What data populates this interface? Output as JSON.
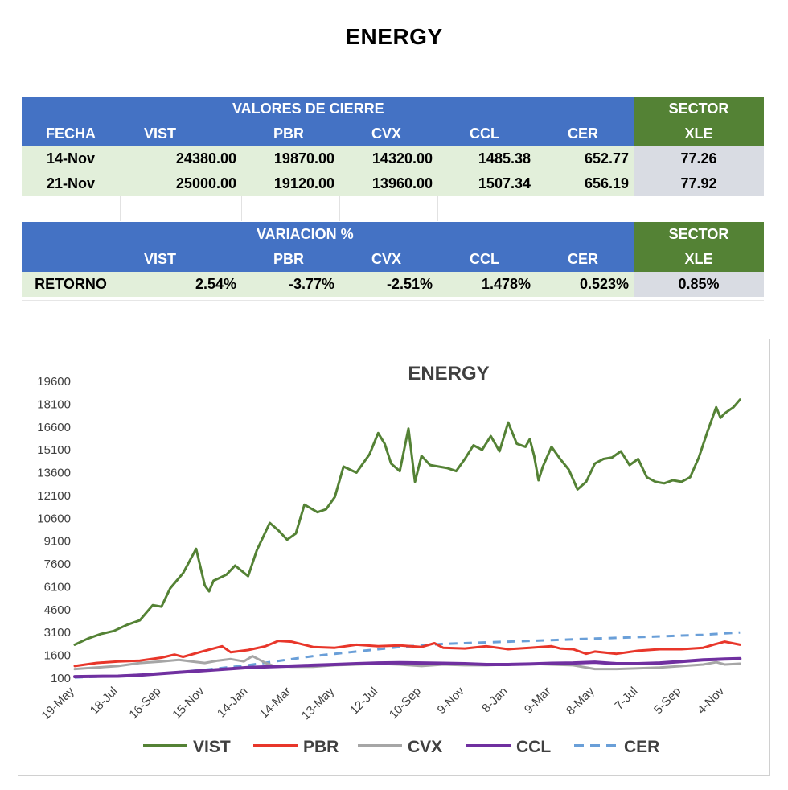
{
  "page_title": "ENERGY",
  "table_values": {
    "header_main": "VALORES DE CIERRE",
    "header_sector": "SECTOR",
    "columns": [
      "FECHA",
      "VIST",
      "PBR",
      "CVX",
      "CCL",
      "CER"
    ],
    "sector_col": "XLE",
    "rows": [
      {
        "fecha": "14-Nov",
        "vist": "24380.00",
        "pbr": "19870.00",
        "cvx": "14320.00",
        "ccl": "1485.38",
        "cer": "652.77",
        "xle": "77.26"
      },
      {
        "fecha": "21-Nov",
        "vist": "25000.00",
        "pbr": "19120.00",
        "cvx": "13960.00",
        "ccl": "1507.34",
        "cer": "656.19",
        "xle": "77.92"
      }
    ]
  },
  "table_variation": {
    "header_main": "VARIACION %",
    "header_sector": "SECTOR",
    "columns": [
      "",
      "VIST",
      "PBR",
      "CVX",
      "CCL",
      "CER"
    ],
    "sector_col": "XLE",
    "row": {
      "label": "RETORNO",
      "vist": "2.54%",
      "pbr": "-3.77%",
      "cvx": "-2.51%",
      "ccl": "1.478%",
      "cer": "0.523%",
      "xle": "0.85%"
    }
  },
  "chart_data": {
    "type": "line",
    "title": "ENERGY",
    "xlabel": "",
    "ylabel": "",
    "ylim": [
      100,
      19600
    ],
    "y_ticks": [
      "19600",
      "18100",
      "16600",
      "15100",
      "13600",
      "12100",
      "10600",
      "9100",
      "7600",
      "6100",
      "4600",
      "3100",
      "1600",
      "100"
    ],
    "y_tick_values": [
      19600,
      18100,
      16600,
      15100,
      13600,
      12100,
      10600,
      9100,
      7600,
      6100,
      4600,
      3100,
      1600,
      100
    ],
    "x_ticks": [
      "19-May",
      "18-Jul",
      "16-Sep",
      "15-Nov",
      "14-Jan",
      "14-Mar",
      "13-May",
      "12-Jul",
      "10-Sep",
      "9-Nov",
      "8-Jan",
      "9-Mar",
      "8-May",
      "7-Jul",
      "5-Sep",
      "4-Nov"
    ],
    "x_range": [
      0,
      15.4
    ],
    "legend_position": "bottom",
    "series": [
      {
        "name": "VIST",
        "color": "#548235",
        "dash": "none",
        "x": [
          0,
          0.3,
          0.6,
          0.9,
          1.2,
          1.5,
          1.8,
          2.0,
          2.2,
          2.5,
          2.8,
          3.0,
          3.1,
          3.2,
          3.35,
          3.5,
          3.7,
          4.0,
          4.2,
          4.5,
          4.7,
          4.9,
          5.1,
          5.3,
          5.6,
          5.8,
          6.0,
          6.2,
          6.5,
          6.8,
          7.0,
          7.15,
          7.3,
          7.5,
          7.7,
          7.85,
          8.0,
          8.2,
          8.4,
          8.6,
          8.8,
          9.0,
          9.2,
          9.4,
          9.6,
          9.8,
          10.0,
          10.2,
          10.4,
          10.5,
          10.6,
          10.7,
          10.8,
          11.0,
          11.2,
          11.4,
          11.6,
          11.8,
          12.0,
          12.2,
          12.4,
          12.6,
          12.8,
          13.0,
          13.2,
          13.4,
          13.6,
          13.8,
          14.0,
          14.2,
          14.4,
          14.6,
          14.8,
          14.9,
          15.0,
          15.2,
          15.35
        ],
        "y": [
          2300,
          2700,
          3000,
          3200,
          3600,
          3900,
          4900,
          4800,
          6000,
          7000,
          8600,
          6200,
          5800,
          6500,
          6700,
          6900,
          7500,
          6800,
          8500,
          10300,
          9800,
          9200,
          9600,
          11500,
          11000,
          11200,
          12000,
          14000,
          13600,
          14800,
          16200,
          15500,
          14200,
          13700,
          16500,
          13000,
          14700,
          14100,
          14000,
          13900,
          13700,
          14500,
          15400,
          15100,
          16000,
          15000,
          16900,
          15500,
          15300,
          15800,
          14700,
          13100,
          14000,
          15300,
          14500,
          13800,
          12500,
          13000,
          14200,
          14500,
          14600,
          15000,
          14100,
          14500,
          13300,
          13000,
          12900,
          13100,
          13000,
          13300,
          14600,
          16300,
          17900,
          17200,
          17500,
          17900,
          18400
        ]
      },
      {
        "name": "PBR",
        "color": "#e8362a",
        "dash": "none",
        "x": [
          0,
          0.5,
          1.0,
          1.5,
          2.0,
          2.3,
          2.5,
          3.0,
          3.4,
          3.6,
          4.0,
          4.4,
          4.7,
          5.0,
          5.5,
          6.0,
          6.5,
          7.0,
          7.5,
          8.0,
          8.3,
          8.5,
          9.0,
          9.5,
          10.0,
          10.5,
          11.0,
          11.2,
          11.5,
          11.8,
          12.0,
          12.5,
          13.0,
          13.5,
          14.0,
          14.5,
          14.8,
          15.0,
          15.35
        ],
        "y": [
          900,
          1100,
          1200,
          1250,
          1450,
          1650,
          1500,
          1900,
          2200,
          1800,
          1950,
          2200,
          2550,
          2500,
          2150,
          2100,
          2300,
          2200,
          2250,
          2150,
          2400,
          2100,
          2050,
          2200,
          2000,
          2100,
          2200,
          2050,
          2000,
          1700,
          1850,
          1700,
          1900,
          2000,
          2000,
          2100,
          2350,
          2500,
          2300
        ]
      },
      {
        "name": "CVX",
        "color": "#a6a6a6",
        "dash": "none",
        "x": [
          0,
          0.5,
          1.0,
          1.5,
          2.0,
          2.4,
          2.7,
          3.0,
          3.3,
          3.6,
          3.9,
          4.1,
          4.4,
          4.6,
          5.0,
          5.5,
          6.0,
          6.5,
          7.0,
          7.5,
          8.0,
          8.5,
          9.0,
          9.5,
          10.0,
          10.5,
          11.0,
          11.5,
          12.0,
          12.5,
          13.0,
          13.5,
          14.0,
          14.5,
          14.8,
          15.0,
          15.35
        ],
        "y": [
          700,
          800,
          900,
          1100,
          1200,
          1300,
          1200,
          1100,
          1250,
          1350,
          1200,
          1550,
          1100,
          900,
          850,
          850,
          950,
          1000,
          1050,
          1000,
          900,
          1000,
          950,
          950,
          1000,
          1050,
          1000,
          950,
          700,
          700,
          750,
          800,
          900,
          1000,
          1150,
          1000,
          1050
        ]
      },
      {
        "name": "CCL",
        "color": "#7030a0",
        "dash": "none",
        "x": [
          0,
          0.5,
          1.0,
          1.5,
          2.0,
          2.5,
          3.0,
          3.5,
          4.0,
          4.5,
          5.0,
          5.5,
          6.0,
          6.5,
          7.0,
          7.5,
          8.0,
          8.5,
          9.0,
          9.5,
          10.0,
          10.5,
          11.0,
          11.5,
          12.0,
          12.5,
          13.0,
          13.5,
          14.0,
          14.5,
          15.0,
          15.35
        ],
        "y": [
          200,
          220,
          230,
          300,
          400,
          500,
          600,
          700,
          800,
          850,
          900,
          950,
          1000,
          1050,
          1100,
          1120,
          1100,
          1080,
          1050,
          1000,
          1000,
          1030,
          1080,
          1100,
          1150,
          1050,
          1050,
          1100,
          1200,
          1300,
          1350,
          1380
        ]
      },
      {
        "name": "CER",
        "color": "#6a9fd8",
        "dash": "10,8",
        "x": [
          0,
          1.0,
          2.0,
          3.0,
          4.0,
          4.5,
          5.0,
          5.5,
          6.0,
          6.5,
          7.0,
          7.5,
          8.0,
          8.5,
          9.0,
          9.5,
          10.0,
          10.5,
          11.0,
          11.5,
          12.0,
          12.5,
          13.0,
          13.5,
          14.0,
          14.5,
          15.0,
          15.35
        ],
        "y": [
          150,
          250,
          400,
          650,
          950,
          1150,
          1350,
          1550,
          1700,
          1850,
          2000,
          2150,
          2250,
          2350,
          2400,
          2450,
          2500,
          2550,
          2600,
          2650,
          2700,
          2750,
          2800,
          2850,
          2900,
          2950,
          3050,
          3100
        ]
      }
    ]
  }
}
